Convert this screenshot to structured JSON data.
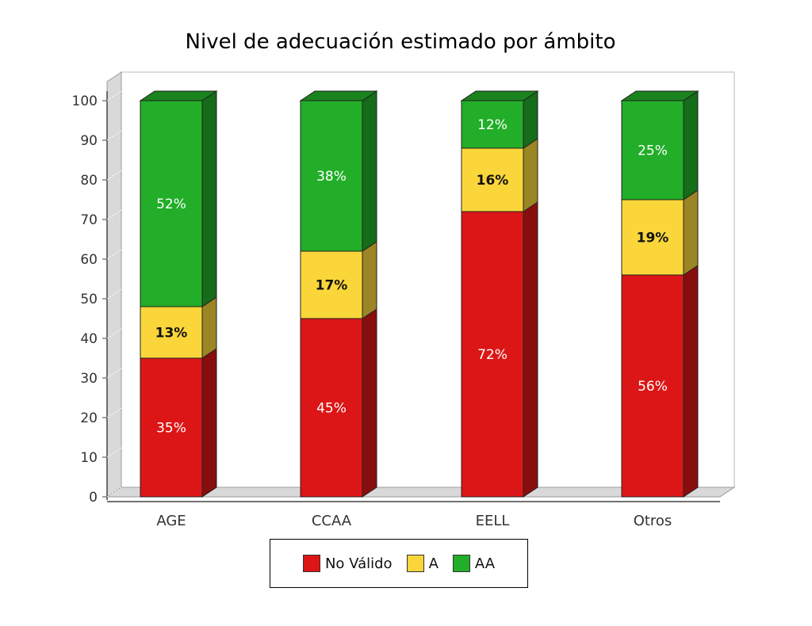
{
  "chart_data": {
    "type": "bar",
    "stacked": true,
    "title": "Nivel de adecuación estimado por ámbito",
    "xlabel": "",
    "ylabel": "",
    "ylim": [
      0,
      100
    ],
    "yticks": [
      0,
      10,
      20,
      30,
      40,
      50,
      60,
      70,
      80,
      90,
      100
    ],
    "grid": false,
    "legend_position": "bottom",
    "categories": [
      "AGE",
      "CCAA",
      "EELL",
      "Otros"
    ],
    "series": [
      {
        "name": "No Válido",
        "values": [
          35,
          45,
          72,
          56
        ],
        "labels": [
          "35%",
          "45%",
          "72%",
          "56%"
        ],
        "color": "#dc1616",
        "label_color": "#ffffff"
      },
      {
        "name": "A",
        "values": [
          13,
          17,
          16,
          19
        ],
        "labels": [
          "13%",
          "17%",
          "16%",
          "19%"
        ],
        "color": "#fbd63a",
        "label_color": "#111111"
      },
      {
        "name": "AA",
        "values": [
          52,
          38,
          12,
          25
        ],
        "labels": [
          "52%",
          "38%",
          "12%",
          "25%"
        ],
        "color": "#22ae28",
        "label_color": "#ffffff"
      }
    ]
  }
}
